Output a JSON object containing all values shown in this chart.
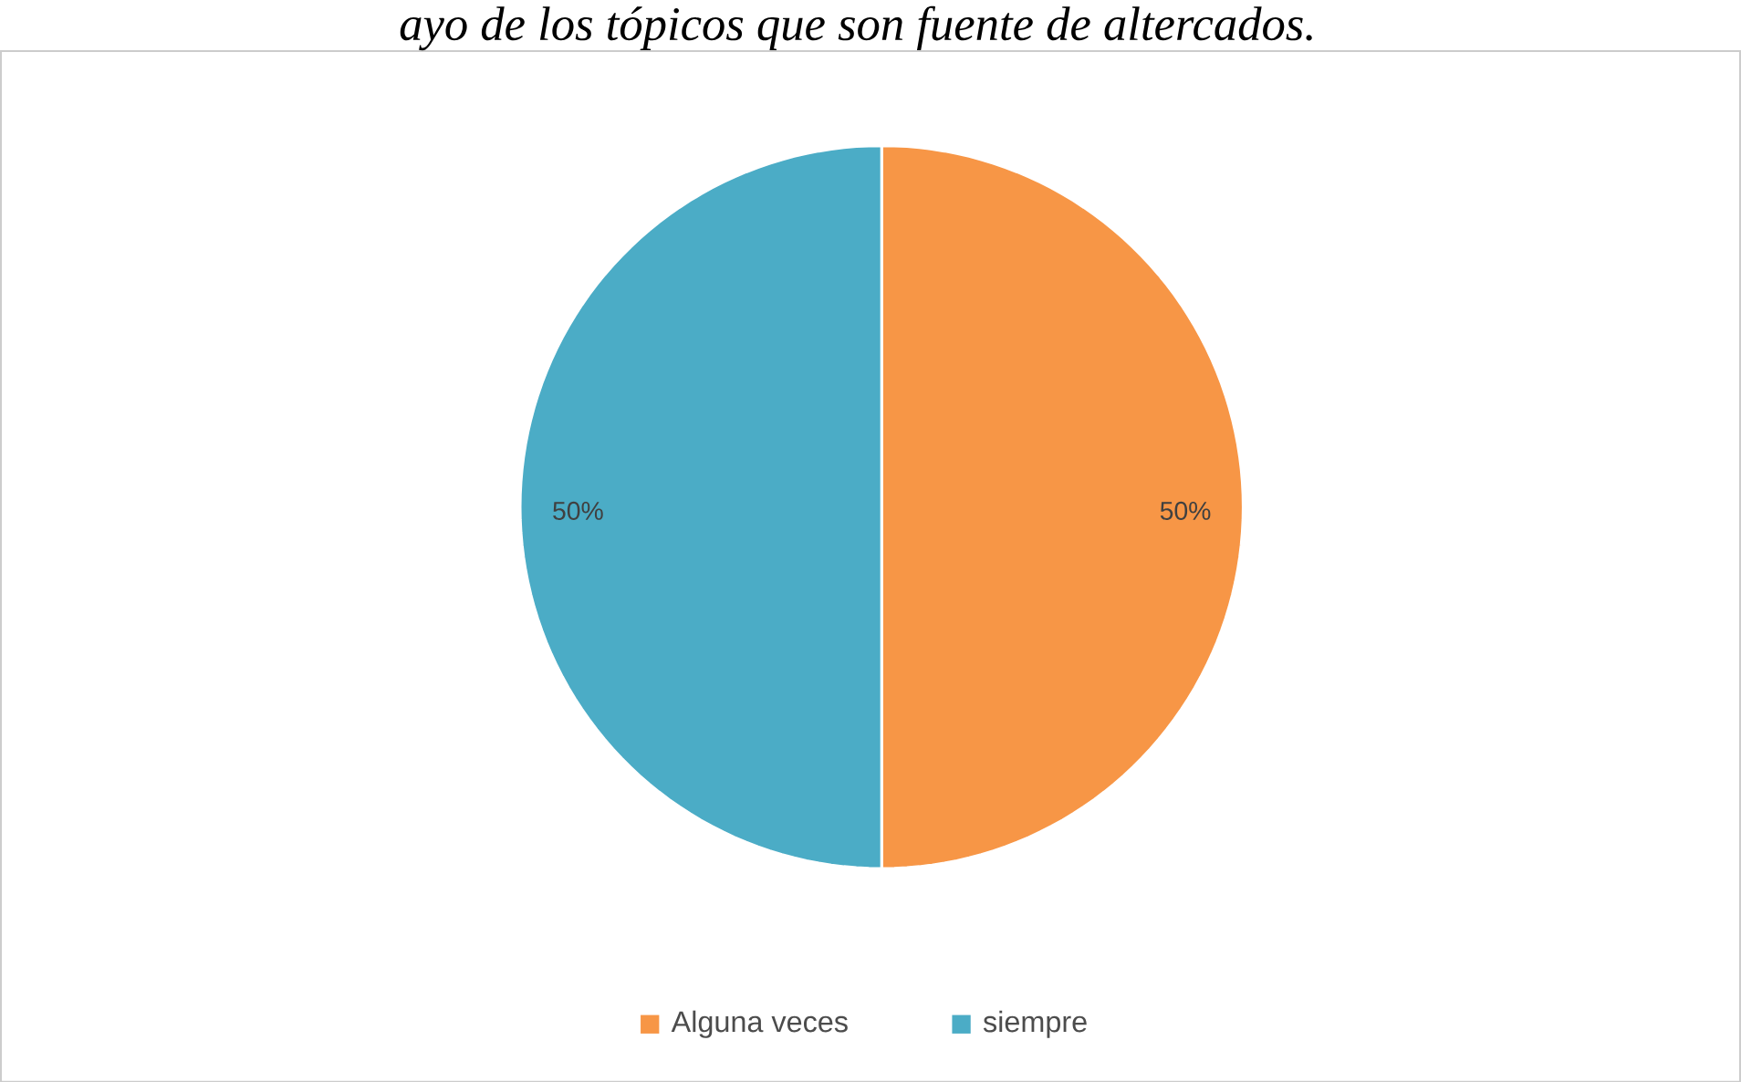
{
  "chart_data": {
    "type": "pie",
    "title": "ayo de los tópicos que son fuente de altercados.",
    "categories": [
      "Alguna veces",
      "siempre"
    ],
    "values": [
      50,
      50
    ],
    "colors": [
      "#f79646",
      "#4bacc6"
    ],
    "value_labels": [
      "50%",
      "50%"
    ],
    "legend": "bottom"
  }
}
